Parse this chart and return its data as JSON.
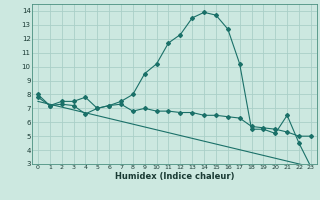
{
  "xlabel": "Humidex (Indice chaleur)",
  "bg_color": "#cce8e0",
  "grid_color": "#aacfc8",
  "line_color": "#1a7068",
  "xlim": [
    -0.5,
    23.5
  ],
  "ylim": [
    3,
    14.5
  ],
  "xticks": [
    0,
    1,
    2,
    3,
    4,
    5,
    6,
    7,
    8,
    9,
    10,
    11,
    12,
    13,
    14,
    15,
    16,
    17,
    18,
    19,
    20,
    21,
    22,
    23
  ],
  "yticks": [
    3,
    4,
    5,
    6,
    7,
    8,
    9,
    10,
    11,
    12,
    13,
    14
  ],
  "curve1_x": [
    0,
    1,
    2,
    3,
    4,
    5,
    6,
    7,
    8,
    9,
    10,
    11,
    12,
    13,
    14,
    15,
    16,
    17,
    18,
    19,
    20,
    21,
    22,
    23
  ],
  "curve1_y": [
    8.0,
    7.2,
    7.5,
    7.5,
    7.8,
    7.0,
    7.2,
    7.5,
    8.0,
    9.5,
    10.2,
    11.7,
    12.3,
    13.5,
    13.9,
    13.7,
    12.7,
    10.2,
    5.5,
    5.5,
    5.2,
    6.5,
    4.5,
    2.8
  ],
  "curve2_x": [
    0,
    1,
    2,
    3,
    4,
    5,
    6,
    7,
    8,
    9,
    10,
    11,
    12,
    13,
    14,
    15,
    16,
    17,
    18,
    19,
    20,
    21,
    22,
    23
  ],
  "curve2_y": [
    7.8,
    7.2,
    7.3,
    7.2,
    6.6,
    7.0,
    7.2,
    7.3,
    6.8,
    7.0,
    6.8,
    6.8,
    6.7,
    6.7,
    6.5,
    6.5,
    6.4,
    6.3,
    5.7,
    5.6,
    5.5,
    5.3,
    5.0,
    5.0
  ],
  "curve3_x": [
    0,
    23
  ],
  "curve3_y": [
    7.5,
    2.8
  ]
}
